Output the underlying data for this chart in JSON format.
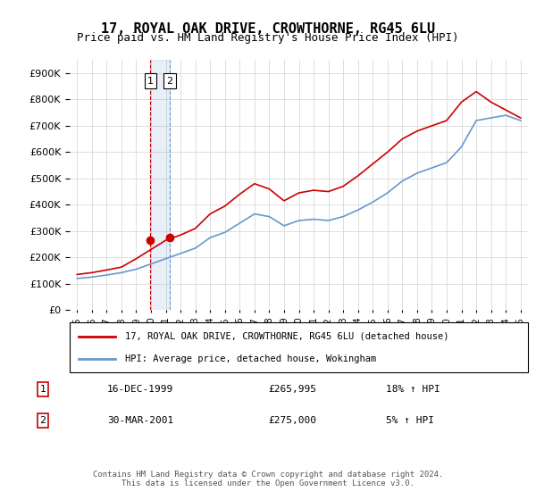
{
  "title": "17, ROYAL OAK DRIVE, CROWTHORNE, RG45 6LU",
  "subtitle": "Price paid vs. HM Land Registry's House Price Index (HPI)",
  "legend_line1": "17, ROYAL OAK DRIVE, CROWTHORNE, RG45 6LU (detached house)",
  "legend_line2": "HPI: Average price, detached house, Wokingham",
  "footer": "Contains HM Land Registry data © Crown copyright and database right 2024.\nThis data is licensed under the Open Government Licence v3.0.",
  "sale1_label": "1",
  "sale1_date": "16-DEC-1999",
  "sale1_price": "£265,995",
  "sale1_hpi": "18% ↑ HPI",
  "sale2_label": "2",
  "sale2_date": "30-MAR-2001",
  "sale2_price": "£275,000",
  "sale2_hpi": "5% ↑ HPI",
  "red_color": "#cc0000",
  "blue_color": "#6699cc",
  "dashed_vline_color": "#cc0000",
  "dashed_vline_color2": "#aaaacc",
  "background_color": "#ffffff",
  "grid_color": "#dddddd",
  "ylim": [
    0,
    950000
  ],
  "yticks": [
    0,
    100000,
    200000,
    300000,
    400000,
    500000,
    600000,
    700000,
    800000,
    900000
  ],
  "xlim_start": 1994.5,
  "xlim_end": 2025.5,
  "sale1_x": 1999.96,
  "sale2_x": 2001.25,
  "hpi_years": [
    1995,
    1996,
    1997,
    1998,
    1999,
    2000,
    2001,
    2002,
    2003,
    2004,
    2005,
    2006,
    2007,
    2008,
    2009,
    2010,
    2011,
    2012,
    2013,
    2014,
    2015,
    2016,
    2017,
    2018,
    2019,
    2020,
    2021,
    2022,
    2023,
    2024,
    2025
  ],
  "hpi_values": [
    120000,
    125000,
    133000,
    142000,
    155000,
    175000,
    195000,
    215000,
    235000,
    275000,
    295000,
    330000,
    365000,
    355000,
    320000,
    340000,
    345000,
    340000,
    355000,
    380000,
    410000,
    445000,
    490000,
    520000,
    540000,
    560000,
    620000,
    720000,
    730000,
    740000,
    720000
  ],
  "red_years": [
    1995,
    1996,
    1997,
    1998,
    1999,
    2000,
    2001,
    2002,
    2003,
    2004,
    2005,
    2006,
    2007,
    2008,
    2009,
    2010,
    2011,
    2012,
    2013,
    2014,
    2015,
    2016,
    2017,
    2018,
    2019,
    2020,
    2021,
    2022,
    2023,
    2024,
    2025
  ],
  "red_values": [
    135000,
    142000,
    152000,
    163000,
    195000,
    230000,
    265000,
    285000,
    310000,
    365000,
    395000,
    440000,
    480000,
    460000,
    415000,
    445000,
    455000,
    450000,
    470000,
    510000,
    555000,
    600000,
    650000,
    680000,
    700000,
    720000,
    790000,
    830000,
    790000,
    760000,
    730000
  ]
}
